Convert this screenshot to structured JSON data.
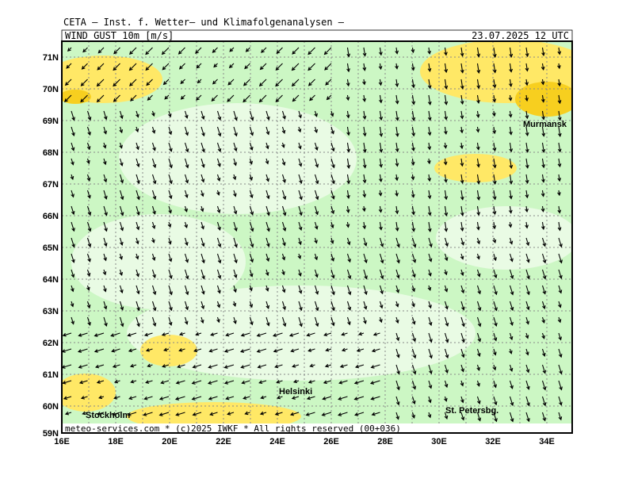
{
  "header": {
    "title": "CETA – Inst. f. Wetter– und Klimafolgenanalysen –",
    "field": "WIND GUST 10m [m/s]",
    "datetime": "23.07.2025 12 UTC"
  },
  "map": {
    "lat_labels": [
      "71N",
      "70N",
      "69N",
      "68N",
      "67N",
      "66N",
      "65N",
      "64N",
      "63N",
      "62N",
      "61N",
      "60N",
      "59N"
    ],
    "lon_labels": [
      "16E",
      "18E",
      "20E",
      "22E",
      "24E",
      "26E",
      "28E",
      "30E",
      "32E",
      "34E"
    ],
    "cities": [
      "Murmansk",
      "Helsinki",
      "Stockholm",
      "St. Petersbg."
    ]
  },
  "footer": "meteo-services.com * (c)2025 IWKF * All rights reserved (00+036)"
}
